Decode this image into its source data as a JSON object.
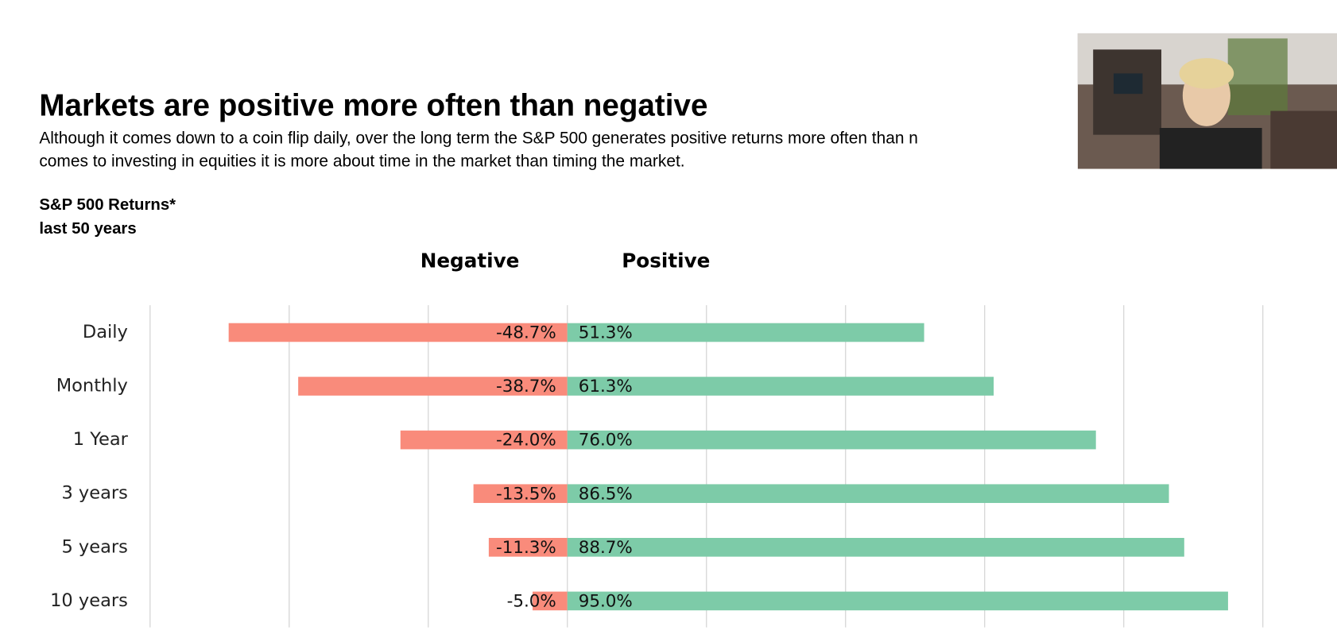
{
  "chart_data": {
    "type": "diverging_bar",
    "title": "Markets are positive more often than negative",
    "subtitle": [
      "Although it comes down to a coin flip daily, over the long term the S&P 500 generates positive returns more often than n",
      "comes to investing in equities it is more about time in the market than timing the market."
    ],
    "label": [
      "S&P 500 Returns*",
      "last 50 years"
    ],
    "categories": [
      "Daily",
      "Monthly",
      "1 Year",
      "3 years",
      "5 years",
      "10 years"
    ],
    "series": [
      {
        "name": "Negative",
        "color": "#f98b7b",
        "values": [
          -48.7,
          -38.7,
          -24.0,
          -13.5,
          -11.3,
          -5.0
        ],
        "value_labels": [
          "-48.7%",
          "-38.7%",
          "-24.0%",
          "-13.5%",
          "-11.3%",
          "-5.0%"
        ]
      },
      {
        "name": "Positive",
        "color": "#7dcba8",
        "values": [
          51.3,
          61.3,
          76.0,
          86.5,
          88.7,
          95.0
        ],
        "value_labels": [
          "51.3%",
          "61.3%",
          "76.0%",
          "86.5%",
          "88.7%",
          "95.0%"
        ]
      }
    ],
    "xlim": [
      -60,
      100
    ],
    "xticks": [
      -60,
      -40,
      -20,
      0,
      20,
      40,
      60,
      80,
      100
    ],
    "grid": true
  }
}
